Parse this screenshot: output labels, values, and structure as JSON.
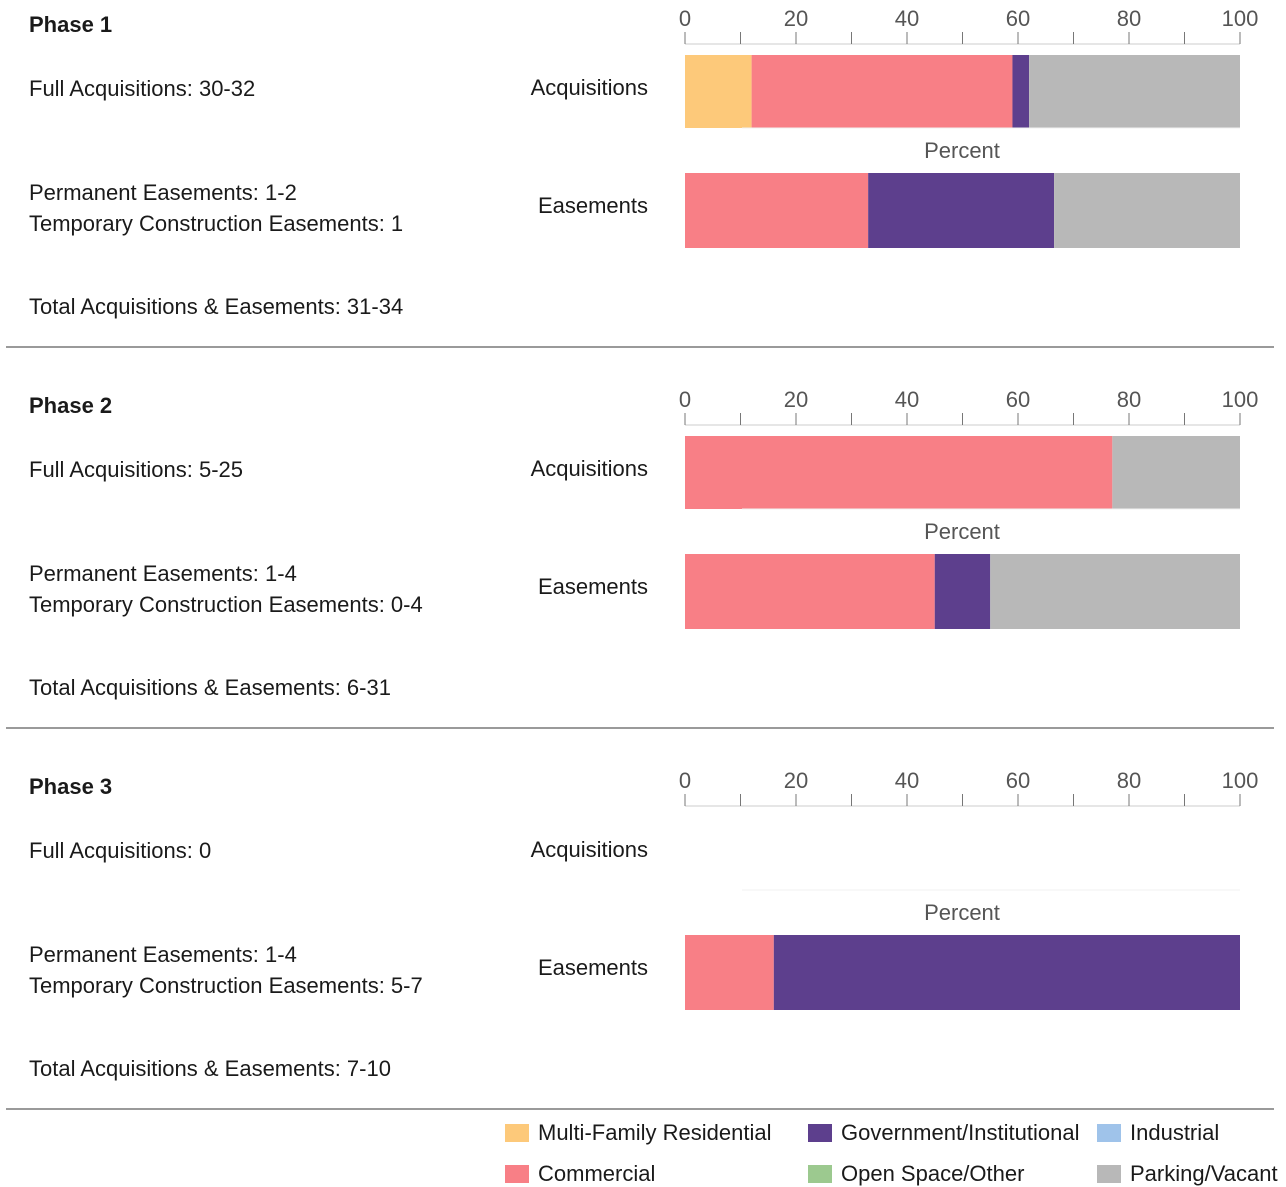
{
  "colors": {
    "Multi-Family Residential": "#fdc97a",
    "Commercial": "#f87f86",
    "Government/Institutional": "#5d3f8d",
    "Industrial": "#9fc3ea",
    "Open Space/Other": "#9cc98f",
    "Parking/Vacant": "#b8b8b8"
  },
  "chart_data": [
    {
      "type": "bar",
      "orientation": "horizontal",
      "stacked": true,
      "title": "Phase 1",
      "xlabel": "Percent",
      "xlim": [
        0,
        100
      ],
      "xticks": [
        "0",
        "20",
        "40",
        "60",
        "80",
        "100"
      ],
      "categories": [
        "Acquisitions",
        "Easements"
      ],
      "series": [
        {
          "name": "Multi-Family Residential",
          "values": [
            12,
            0
          ]
        },
        {
          "name": "Commercial",
          "values": [
            47,
            33
          ]
        },
        {
          "name": "Government/Institutional",
          "values": [
            3,
            33.5
          ]
        },
        {
          "name": "Parking/Vacant",
          "values": [
            38,
            33.5
          ]
        }
      ]
    },
    {
      "type": "bar",
      "orientation": "horizontal",
      "stacked": true,
      "title": "Phase 2",
      "xlabel": "Percent",
      "xlim": [
        0,
        100
      ],
      "xticks": [
        "0",
        "20",
        "40",
        "60",
        "80",
        "100"
      ],
      "categories": [
        "Acquisitions",
        "Easements"
      ],
      "series": [
        {
          "name": "Commercial",
          "values": [
            77,
            45
          ]
        },
        {
          "name": "Government/Institutional",
          "values": [
            0,
            10
          ]
        },
        {
          "name": "Parking/Vacant",
          "values": [
            23,
            45
          ]
        }
      ]
    },
    {
      "type": "bar",
      "orientation": "horizontal",
      "stacked": true,
      "title": "Phase 3",
      "xlabel": "Percent",
      "xlim": [
        0,
        100
      ],
      "xticks": [
        "0",
        "20",
        "40",
        "60",
        "80",
        "100"
      ],
      "categories": [
        "Acquisitions",
        "Easements"
      ],
      "series": [
        {
          "name": "Commercial",
          "values": [
            0,
            16
          ]
        },
        {
          "name": "Government/Institutional",
          "values": [
            0,
            84
          ]
        }
      ]
    }
  ],
  "phases": [
    {
      "title": "Phase 1",
      "full_acquisitions": "Full Acquisitions: 30-32",
      "permanent_easements": "Permanent Easements: 1-2",
      "temporary_easements": "Temporary Construction Easements: 1",
      "total": "Total Acquisitions & Easements: 31-34",
      "row_labels": [
        "Acquisitions",
        "Easements"
      ],
      "axis_label": "Percent"
    },
    {
      "title": "Phase 2",
      "full_acquisitions": "Full Acquisitions: 5-25",
      "permanent_easements": "Permanent Easements: 1-4",
      "temporary_easements": "Temporary Construction Easements: 0-4",
      "total": "Total Acquisitions & Easements: 6-31",
      "row_labels": [
        "Acquisitions",
        "Easements"
      ],
      "axis_label": "Percent"
    },
    {
      "title": "Phase 3",
      "full_acquisitions": "Full Acquisitions: 0",
      "permanent_easements": "Permanent Easements: 1-4",
      "temporary_easements": "Temporary Construction Easements: 5-7",
      "total": "Total Acquisitions & Easements: 7-10",
      "row_labels": [
        "Acquisitions",
        "Easements"
      ],
      "axis_label": "Percent"
    }
  ],
  "legend": {
    "items": [
      "Multi-Family Residential",
      "Government/Institutional",
      "Industrial",
      "Commercial",
      "Open Space/Other",
      "Parking/Vacant"
    ]
  }
}
